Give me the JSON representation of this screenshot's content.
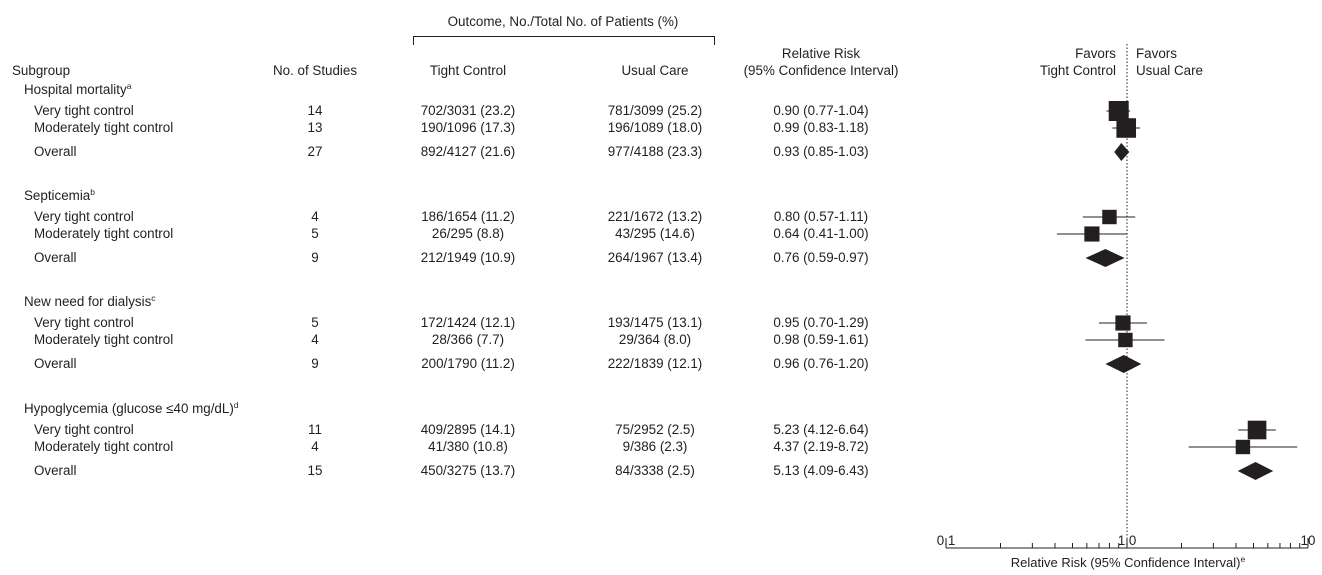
{
  "header": {
    "outcome_span": "Outcome, No./Total No. of Patients (%)",
    "col_subgroup": "Subgroup",
    "col_studies": "No. of Studies",
    "col_tight": "Tight Control",
    "col_usual": "Usual Care",
    "col_rr_line1": "Relative Risk",
    "col_rr_line2": "(95% Confidence Interval)",
    "favors_left_line1": "Favors",
    "favors_left_line2": "Tight Control",
    "favors_right_line1": "Favors",
    "favors_right_line2": "Usual Care"
  },
  "groups": [
    {
      "title": "Hospital mortality",
      "footnote": "a",
      "rows": [
        {
          "label": "Very tight control",
          "studies": "14",
          "tight": "702/3031 (23.2)",
          "usual": "781/3099 (25.2)",
          "rr_text": "0.90 (0.77-1.04)"
        },
        {
          "label": "Moderately tight control",
          "studies": "13",
          "tight": "190/1096 (17.3)",
          "usual": "196/1089 (18.0)",
          "rr_text": "0.99 (0.83-1.18)"
        }
      ],
      "overall": {
        "label": "Overall",
        "studies": "27",
        "tight": "892/4127 (21.6)",
        "usual": "977/4188 (23.3)",
        "rr_text": "0.93 (0.85-1.03)"
      }
    },
    {
      "title": "Septicemia",
      "footnote": "b",
      "rows": [
        {
          "label": "Very tight control",
          "studies": "4",
          "tight": "186/1654 (11.2)",
          "usual": "221/1672 (13.2)",
          "rr_text": "0.80 (0.57-1.11)"
        },
        {
          "label": "Moderately tight control",
          "studies": "5",
          "tight": "26/295 (8.8)",
          "usual": "43/295 (14.6)",
          "rr_text": "0.64 (0.41-1.00)"
        }
      ],
      "overall": {
        "label": "Overall",
        "studies": "9",
        "tight": "212/1949 (10.9)",
        "usual": "264/1967 (13.4)",
        "rr_text": "0.76 (0.59-0.97)"
      }
    },
    {
      "title": "New need for dialysis",
      "footnote": "c",
      "rows": [
        {
          "label": "Very tight control",
          "studies": "5",
          "tight": "172/1424 (12.1)",
          "usual": "193/1475 (13.1)",
          "rr_text": "0.95 (0.70-1.29)"
        },
        {
          "label": "Moderately tight control",
          "studies": "4",
          "tight": "28/366 (7.7)",
          "usual": "29/364 (8.0)",
          "rr_text": "0.98 (0.59-1.61)"
        }
      ],
      "overall": {
        "label": "Overall",
        "studies": "9",
        "tight": "200/1790 (11.2)",
        "usual": "222/1839 (12.1)",
        "rr_text": "0.96 (0.76-1.20)"
      }
    },
    {
      "title": "Hypoglycemia (glucose ≤40 mg/dL)",
      "footnote": "d",
      "rows": [
        {
          "label": "Very tight control",
          "studies": "11",
          "tight": "409/2895 (14.1)",
          "usual": "75/2952 (2.5)",
          "rr_text": "5.23 (4.12-6.64)"
        },
        {
          "label": "Moderately tight control",
          "studies": "4",
          "tight": "41/380 (10.8)",
          "usual": "9/386 (2.3)",
          "rr_text": "4.37 (2.19-8.72)"
        }
      ],
      "overall": {
        "label": "Overall",
        "studies": "15",
        "tight": "450/3275 (13.7)",
        "usual": "84/3338 (2.5)",
        "rr_text": "5.13 (4.09-6.43)"
      }
    }
  ],
  "chart_data": {
    "type": "forest",
    "scale": "log",
    "xlim": [
      0.1,
      10
    ],
    "reference_line": 1.0,
    "tick_labels": [
      "0.1",
      "1.0",
      "10"
    ],
    "xlabel": "Relative Risk (95% Confidence Interval)",
    "xlabel_footnote": "e",
    "marker_color": "#231f20",
    "series": [
      {
        "name": "Hospital mortality",
        "points": [
          {
            "label": "Very tight control",
            "rr": 0.9,
            "lo": 0.77,
            "hi": 1.04,
            "n_studies": 14
          },
          {
            "label": "Moderately tight control",
            "rr": 0.99,
            "lo": 0.83,
            "hi": 1.18,
            "n_studies": 13
          }
        ],
        "overall": {
          "rr": 0.93,
          "lo": 0.85,
          "hi": 1.03
        }
      },
      {
        "name": "Septicemia",
        "points": [
          {
            "label": "Very tight control",
            "rr": 0.8,
            "lo": 0.57,
            "hi": 1.11,
            "n_studies": 4
          },
          {
            "label": "Moderately tight control",
            "rr": 0.64,
            "lo": 0.41,
            "hi": 1.0,
            "n_studies": 5
          }
        ],
        "overall": {
          "rr": 0.76,
          "lo": 0.59,
          "hi": 0.97
        }
      },
      {
        "name": "New need for dialysis",
        "points": [
          {
            "label": "Very tight control",
            "rr": 0.95,
            "lo": 0.7,
            "hi": 1.29,
            "n_studies": 5
          },
          {
            "label": "Moderately tight control",
            "rr": 0.98,
            "lo": 0.59,
            "hi": 1.61,
            "n_studies": 4
          }
        ],
        "overall": {
          "rr": 0.96,
          "lo": 0.76,
          "hi": 1.2
        }
      },
      {
        "name": "Hypoglycemia (glucose ≤40 mg/dL)",
        "points": [
          {
            "label": "Very tight control",
            "rr": 5.23,
            "lo": 4.12,
            "hi": 6.64,
            "n_studies": 11
          },
          {
            "label": "Moderately tight control",
            "rr": 4.37,
            "lo": 2.19,
            "hi": 8.72,
            "n_studies": 4
          }
        ],
        "overall": {
          "rr": 5.13,
          "lo": 4.09,
          "hi": 6.43
        }
      }
    ]
  }
}
